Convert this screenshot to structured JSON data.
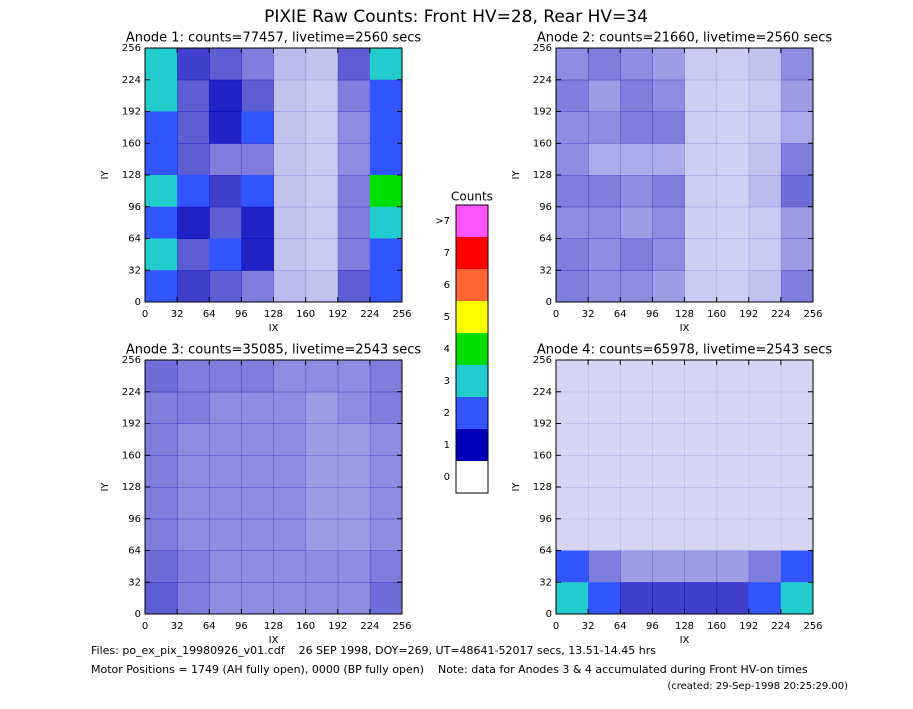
{
  "title": "PIXIE Raw Counts:  Front HV=28, Rear HV=34",
  "chart_data": [
    {
      "type": "heatmap",
      "title": "Anode 1: counts=77457, livetime=2560 secs",
      "xlabel": "IX",
      "ylabel": "IY",
      "xlim": [
        0,
        256
      ],
      "ylim": [
        0,
        256
      ],
      "xticks": [
        0,
        32,
        64,
        96,
        128,
        160,
        192,
        224,
        256
      ],
      "yticks": [
        0,
        32,
        64,
        96,
        128,
        160,
        192,
        224,
        256
      ],
      "grid_rows_top_to_bottom": [
        [
          2.5,
          1.0,
          0.8,
          0.6,
          0.2,
          0.15,
          0.8,
          2.5
        ],
        [
          2.5,
          0.8,
          1.2,
          0.8,
          0.15,
          0.1,
          0.6,
          2.0
        ],
        [
          2.0,
          0.8,
          1.2,
          1.5,
          0.15,
          0.1,
          0.5,
          1.8
        ],
        [
          2.0,
          0.8,
          0.6,
          0.6,
          0.15,
          0.1,
          0.5,
          1.8
        ],
        [
          2.5,
          1.5,
          1.0,
          1.5,
          0.15,
          0.1,
          0.6,
          3.5
        ],
        [
          2.0,
          1.2,
          0.8,
          1.2,
          0.15,
          0.1,
          0.6,
          2.5
        ],
        [
          2.5,
          0.8,
          1.5,
          1.2,
          0.15,
          0.1,
          0.6,
          2.0
        ],
        [
          2.0,
          1.0,
          0.8,
          0.6,
          0.2,
          0.15,
          0.8,
          2.0
        ]
      ]
    },
    {
      "type": "heatmap",
      "title": "Anode 2: counts=21660, livetime=2560 secs",
      "xlabel": "IX",
      "ylabel": "IY",
      "xlim": [
        0,
        256
      ],
      "ylim": [
        0,
        256
      ],
      "xticks": [
        0,
        32,
        64,
        96,
        128,
        160,
        192,
        224,
        256
      ],
      "yticks": [
        0,
        32,
        64,
        96,
        128,
        160,
        192,
        224,
        256
      ],
      "grid_rows_top_to_bottom": [
        [
          0.5,
          0.6,
          0.5,
          0.4,
          0.1,
          0.08,
          0.15,
          0.5
        ],
        [
          0.6,
          0.4,
          0.6,
          0.5,
          0.08,
          0.06,
          0.1,
          0.4
        ],
        [
          0.5,
          0.5,
          0.6,
          0.6,
          0.08,
          0.06,
          0.1,
          0.3
        ],
        [
          0.5,
          0.3,
          0.3,
          0.3,
          0.08,
          0.06,
          0.15,
          0.6
        ],
        [
          0.6,
          0.6,
          0.5,
          0.6,
          0.08,
          0.06,
          0.2,
          0.7
        ],
        [
          0.5,
          0.5,
          0.4,
          0.5,
          0.08,
          0.06,
          0.1,
          0.4
        ],
        [
          0.6,
          0.5,
          0.6,
          0.5,
          0.08,
          0.06,
          0.1,
          0.4
        ],
        [
          0.6,
          0.5,
          0.5,
          0.4,
          0.1,
          0.08,
          0.15,
          0.6
        ]
      ]
    },
    {
      "type": "heatmap",
      "title": "Anode 3: counts=35085, livetime=2543 secs",
      "xlabel": "IX",
      "ylabel": "IY",
      "xlim": [
        0,
        256
      ],
      "ylim": [
        0,
        256
      ],
      "xticks": [
        0,
        32,
        64,
        96,
        128,
        160,
        192,
        224,
        256
      ],
      "yticks": [
        0,
        32,
        64,
        96,
        128,
        160,
        192,
        224,
        256
      ],
      "grid_rows_top_to_bottom": [
        [
          0.7,
          0.6,
          0.6,
          0.6,
          0.5,
          0.5,
          0.5,
          0.6
        ],
        [
          0.6,
          0.6,
          0.5,
          0.5,
          0.5,
          0.4,
          0.5,
          0.6
        ],
        [
          0.6,
          0.5,
          0.5,
          0.5,
          0.5,
          0.4,
          0.4,
          0.5
        ],
        [
          0.6,
          0.5,
          0.5,
          0.5,
          0.5,
          0.4,
          0.4,
          0.5
        ],
        [
          0.6,
          0.5,
          0.5,
          0.5,
          0.5,
          0.4,
          0.4,
          0.5
        ],
        [
          0.6,
          0.5,
          0.5,
          0.5,
          0.5,
          0.4,
          0.4,
          0.5
        ],
        [
          0.7,
          0.6,
          0.5,
          0.5,
          0.5,
          0.5,
          0.5,
          0.6
        ],
        [
          0.8,
          0.6,
          0.5,
          0.5,
          0.5,
          0.5,
          0.5,
          0.7
        ]
      ]
    },
    {
      "type": "heatmap",
      "title": "Anode 4: counts=65978, livetime=2543 secs",
      "xlabel": "IX",
      "ylabel": "IY",
      "xlim": [
        0,
        256
      ],
      "ylim": [
        0,
        256
      ],
      "xticks": [
        0,
        32,
        64,
        96,
        128,
        160,
        192,
        224,
        256
      ],
      "yticks": [
        0,
        32,
        64,
        96,
        128,
        160,
        192,
        224,
        256
      ],
      "grid_rows_top_to_bottom": [
        [
          0.02,
          0.02,
          0.02,
          0.02,
          0.02,
          0.02,
          0.02,
          0.02
        ],
        [
          0.02,
          0.02,
          0.02,
          0.02,
          0.02,
          0.02,
          0.02,
          0.02
        ],
        [
          0.02,
          0.02,
          0.02,
          0.02,
          0.02,
          0.02,
          0.02,
          0.02
        ],
        [
          0.02,
          0.02,
          0.02,
          0.02,
          0.02,
          0.02,
          0.02,
          0.02
        ],
        [
          0.02,
          0.02,
          0.02,
          0.02,
          0.02,
          0.02,
          0.02,
          0.02
        ],
        [
          0.02,
          0.02,
          0.02,
          0.02,
          0.02,
          0.02,
          0.02,
          0.02
        ],
        [
          2.0,
          0.6,
          0.4,
          0.4,
          0.4,
          0.4,
          0.6,
          2.0
        ],
        [
          3.0,
          1.5,
          1.0,
          1.0,
          1.0,
          1.0,
          1.5,
          3.0
        ]
      ]
    }
  ],
  "colorbar": {
    "title": "Counts",
    "levels": [
      0,
      1,
      2,
      3,
      4,
      5,
      6,
      7,
      {
        "value": 8,
        "label": ">7"
      }
    ],
    "colors": [
      "#ffffff",
      "#0000bb",
      "#3355ff",
      "#22cccc",
      "#00dd00",
      "#ffff00",
      "#ff6633",
      "#ff0000",
      "#ff55ff"
    ]
  },
  "footer": {
    "line1": "Files: po_ex_pix_19980926_v01.cdf    26 SEP 1998, DOY=269, UT=48641-52017 secs, 13.51-14.45 hrs",
    "line2": "Motor Positions = 1749 (AH fully open), 0000 (BP fully open)    Note: data for Anodes 3 & 4 accumulated during Front HV-on times",
    "created": "(created: 29-Sep-1998 20:25:29.00)"
  }
}
